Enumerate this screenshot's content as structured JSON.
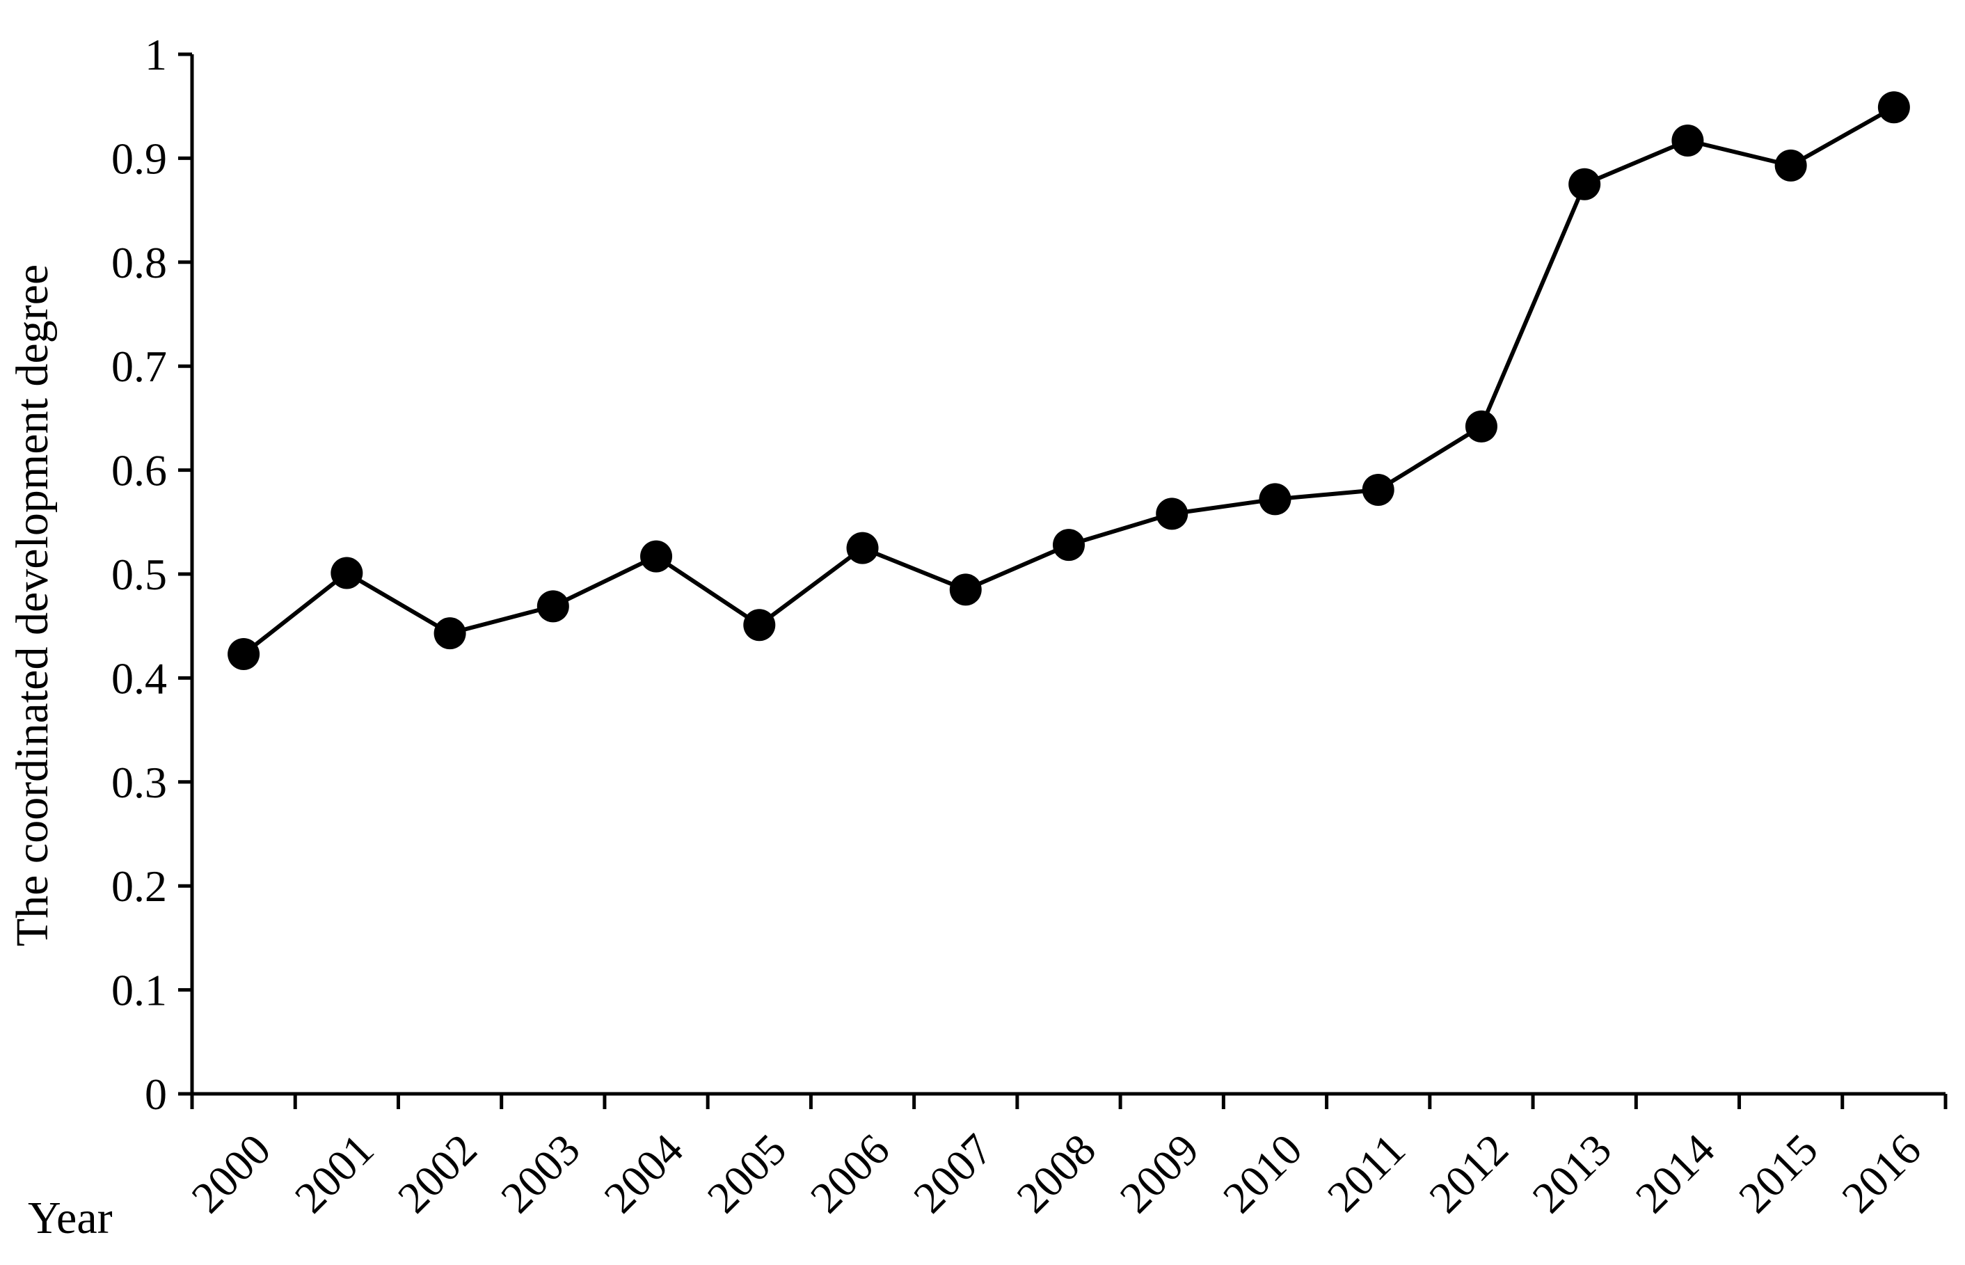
{
  "chart_data": {
    "type": "line",
    "title": "",
    "xlabel": "Year",
    "ylabel": "The coordinated development degree",
    "categories": [
      "2000",
      "2001",
      "2002",
      "2003",
      "2004",
      "2005",
      "2006",
      "2007",
      "2008",
      "2009",
      "2010",
      "2011",
      "2012",
      "2013",
      "2014",
      "2015",
      "2016"
    ],
    "series": [
      {
        "values": [
          0.423,
          0.501,
          0.443,
          0.469,
          0.517,
          0.451,
          0.525,
          0.485,
          0.528,
          0.558,
          0.572,
          0.581,
          0.642,
          0.875,
          0.917,
          0.893,
          0.949
        ],
        "marker": "filled-circle",
        "color": "#000000"
      }
    ],
    "ylim": [
      0,
      1
    ],
    "yticks": [
      "0",
      "0.1",
      "0.2",
      "0.3",
      "0.4",
      "0.5",
      "0.6",
      "0.7",
      "0.8",
      "0.9",
      "1"
    ],
    "grid": false,
    "legend": "none"
  }
}
